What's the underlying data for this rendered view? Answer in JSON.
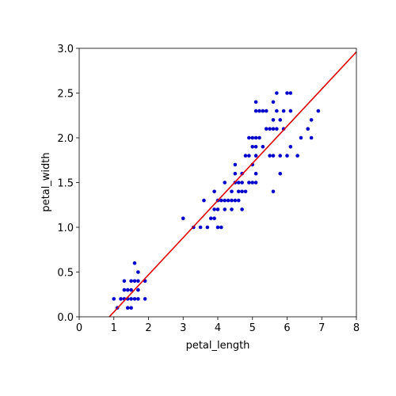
{
  "chart_data": {
    "type": "scatter",
    "x_label": "petal_length",
    "y_label": "petal_width",
    "xlim": [
      0,
      8
    ],
    "ylim": [
      0,
      3
    ],
    "xticks": [
      0,
      1,
      2,
      3,
      4,
      5,
      6,
      7,
      8
    ],
    "yticks": [
      {
        "value": 0,
        "label": "0.0"
      },
      0.5,
      {
        "value": 1,
        "label": "1.0"
      },
      1.5,
      {
        "value": 2,
        "label": "2.0"
      },
      2.5,
      {
        "value": 3,
        "label": "3.0"
      }
    ],
    "series": [
      {
        "color": "#0000cc",
        "x": [
          1.0,
          1.1,
          1.2,
          1.3,
          1.3,
          1.3,
          1.4,
          1.4,
          1.4,
          1.5,
          1.5,
          1.5,
          1.5,
          1.6,
          1.6,
          1.6,
          1.7,
          1.7,
          1.7,
          1.7,
          1.9,
          1.9,
          3.0,
          3.3,
          3.5,
          3.6,
          3.7,
          3.8,
          3.9,
          3.9,
          3.9,
          4.0,
          4.0,
          4.0,
          4.1,
          4.1,
          4.2,
          4.2,
          4.2,
          4.3,
          4.4,
          4.4,
          4.4,
          4.5,
          4.5,
          4.5,
          4.6,
          4.6,
          4.6,
          4.7,
          4.7,
          4.7,
          4.7,
          4.8,
          4.8,
          4.9,
          5.0,
          5.1,
          4.5,
          4.9,
          4.9,
          5.0,
          5.0,
          5.0,
          5.1,
          5.1,
          5.1,
          5.1,
          5.1,
          5.1,
          5.2,
          5.2,
          5.3,
          5.3,
          5.4,
          5.4,
          5.5,
          5.5,
          5.6,
          5.6,
          5.6,
          5.6,
          5.6,
          5.7,
          5.7,
          5.7,
          5.8,
          5.8,
          5.8,
          5.9,
          5.9,
          6.0,
          6.0,
          6.1,
          6.1,
          6.1,
          6.3,
          6.4,
          6.6,
          6.7,
          6.7,
          6.9
        ],
        "values": [
          0.2,
          0.1,
          0.2,
          0.2,
          0.3,
          0.4,
          0.1,
          0.2,
          0.3,
          0.1,
          0.2,
          0.3,
          0.4,
          0.2,
          0.4,
          0.6,
          0.2,
          0.3,
          0.4,
          0.5,
          0.2,
          0.4,
          1.1,
          1.0,
          1.0,
          1.3,
          1.0,
          1.1,
          1.1,
          1.2,
          1.4,
          1.0,
          1.2,
          1.3,
          1.0,
          1.3,
          1.2,
          1.3,
          1.5,
          1.3,
          1.2,
          1.3,
          1.4,
          1.3,
          1.5,
          1.6,
          1.3,
          1.4,
          1.5,
          1.2,
          1.4,
          1.5,
          1.6,
          1.4,
          1.8,
          1.5,
          1.7,
          1.6,
          1.7,
          1.8,
          2.0,
          1.5,
          1.9,
          2.0,
          1.5,
          1.8,
          1.9,
          2.0,
          2.3,
          2.4,
          2.0,
          2.3,
          1.9,
          2.3,
          2.1,
          2.3,
          1.8,
          2.1,
          1.4,
          1.8,
          2.1,
          2.2,
          2.4,
          2.1,
          2.3,
          2.5,
          1.6,
          1.8,
          2.2,
          2.1,
          2.3,
          1.8,
          2.5,
          1.9,
          2.3,
          2.5,
          1.8,
          2.0,
          2.1,
          2.0,
          2.2,
          2.3
        ]
      }
    ],
    "fit_line": {
      "color": "#dd0000",
      "x": [
        0.87,
        8
      ],
      "values": [
        0,
        2.96
      ]
    }
  }
}
